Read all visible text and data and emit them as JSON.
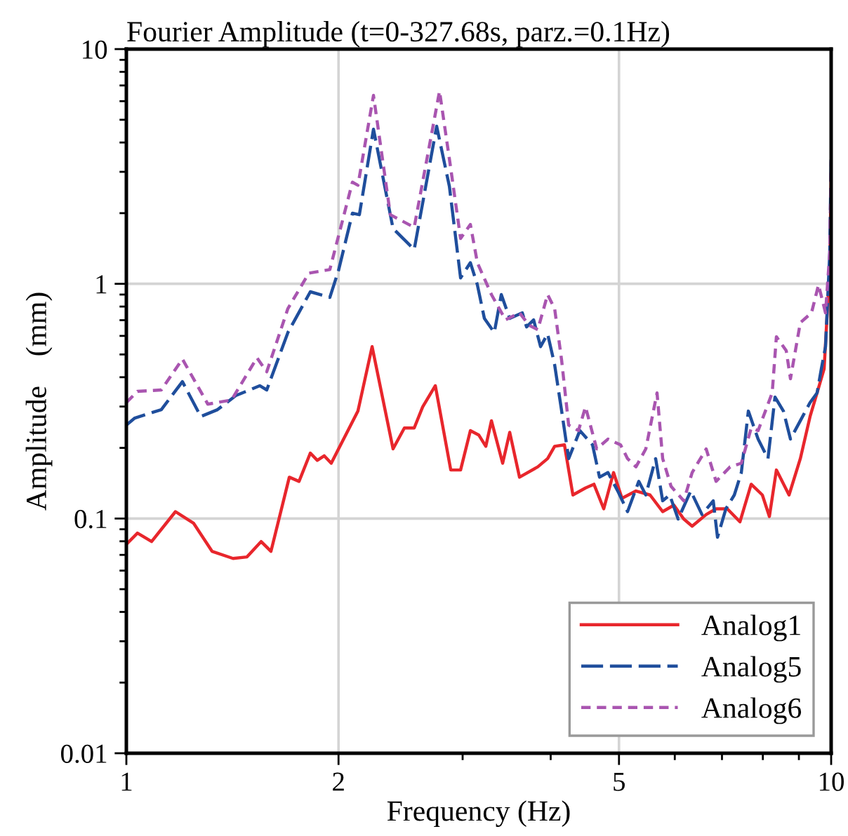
{
  "chart_data": {
    "type": "line",
    "title": "Fourier Amplitude (t=0-327.68s, parz.=0.1Hz)",
    "xlabel": "Frequency (Hz)",
    "ylabel": "Amplitude    (mm)",
    "log": "xy",
    "xlim": [
      1,
      10
    ],
    "xticks": [
      1,
      2,
      5,
      10
    ],
    "ylim": [
      0.01,
      10
    ],
    "yticks": [
      0.01,
      0.1,
      1,
      10
    ],
    "grid": true,
    "legend": "bottom right",
    "series": [
      {
        "name": "Analog1",
        "color": "#e8262c",
        "line_style": "solid",
        "x": [
          1.0,
          1.037,
          1.086,
          1.174,
          1.246,
          1.323,
          1.417,
          1.483,
          1.553,
          1.604,
          1.703,
          1.758,
          1.824,
          1.866,
          1.909,
          1.953,
          2.131,
          2.232,
          2.39,
          2.48,
          2.561,
          2.633,
          2.744,
          2.886,
          2.98,
          3.077,
          3.162,
          3.236,
          3.296,
          3.419,
          3.499,
          3.613,
          3.835,
          3.96,
          4.052,
          4.184,
          4.301,
          4.482,
          4.607,
          4.757,
          4.912,
          5.049,
          5.285,
          5.534,
          5.767,
          5.983,
          6.178,
          6.35,
          6.648,
          6.866,
          7.123,
          7.423,
          7.701,
          7.987,
          8.173,
          8.362,
          8.715,
          9.042,
          9.334,
          9.551,
          9.773,
          9.955,
          10
        ],
        "values": [
          0.0776,
          0.0867,
          0.0798,
          0.107,
          0.0954,
          0.0725,
          0.0676,
          0.0686,
          0.0798,
          0.0725,
          0.15,
          0.144,
          0.19,
          0.177,
          0.185,
          0.172,
          0.287,
          0.54,
          0.198,
          0.243,
          0.243,
          0.299,
          0.368,
          0.161,
          0.161,
          0.237,
          0.227,
          0.203,
          0.261,
          0.172,
          0.233,
          0.15,
          0.166,
          0.18,
          0.203,
          0.206,
          0.126,
          0.135,
          0.14,
          0.11,
          0.157,
          0.122,
          0.131,
          0.126,
          0.107,
          0.114,
          0.0995,
          0.0928,
          0.104,
          0.11,
          0.11,
          0.0968,
          0.14,
          0.126,
          0.102,
          0.161,
          0.126,
          0.18,
          0.272,
          0.343,
          0.434,
          1.18,
          2.9
        ]
      },
      {
        "name": "Analog5",
        "color": "#1f4e9c",
        "line_style": "dashed",
        "x": [
          1.0,
          1.028,
          1.121,
          1.201,
          1.275,
          1.347,
          1.43,
          1.546,
          1.582,
          1.695,
          1.824,
          1.944,
          2.0,
          2.093,
          2.141,
          2.242,
          2.39,
          2.561,
          2.756,
          2.873,
          2.98,
          3.077,
          3.148,
          3.221,
          3.327,
          3.404,
          3.499,
          3.646,
          3.697,
          3.783,
          3.87,
          3.96,
          4.052,
          4.146,
          4.242,
          4.4,
          4.586,
          4.692,
          4.823,
          4.98,
          5.142,
          5.334,
          5.458,
          5.636,
          5.767,
          5.901,
          6.066,
          6.321,
          6.557,
          6.803,
          6.898,
          7.09,
          7.288,
          7.457,
          7.63,
          7.877,
          8.135,
          8.324,
          8.556,
          8.755,
          9.042,
          9.334,
          9.551,
          9.684,
          9.818,
          9.955,
          10
        ],
        "values": [
          0.25,
          0.268,
          0.291,
          0.383,
          0.272,
          0.291,
          0.334,
          0.368,
          0.353,
          0.62,
          0.925,
          0.875,
          1.14,
          2.0,
          1.97,
          4.56,
          1.72,
          1.4,
          4.69,
          2.6,
          1.06,
          1.23,
          0.99,
          0.712,
          0.62,
          0.9,
          0.712,
          0.752,
          0.655,
          0.702,
          0.54,
          0.612,
          0.452,
          0.287,
          0.18,
          0.237,
          0.206,
          0.15,
          0.157,
          0.131,
          0.107,
          0.144,
          0.126,
          0.18,
          0.119,
          0.126,
          0.0995,
          0.131,
          0.104,
          0.119,
          0.0832,
          0.11,
          0.126,
          0.157,
          0.287,
          0.218,
          0.18,
          0.329,
          0.287,
          0.218,
          0.261,
          0.312,
          0.343,
          0.434,
          0.54,
          1.36,
          3.56
        ]
      },
      {
        "name": "Analog6",
        "color": "#a955b0",
        "line_style": "dotted",
        "x": [
          1.0,
          1.037,
          1.121,
          1.201,
          1.305,
          1.41,
          1.532,
          1.582,
          1.695,
          1.815,
          1.944,
          2.093,
          2.131,
          2.242,
          2.369,
          2.561,
          2.782,
          2.886,
          2.98,
          3.077,
          3.148,
          3.296,
          3.451,
          3.613,
          3.731,
          3.835,
          3.96,
          4.052,
          4.146,
          4.242,
          4.38,
          4.482,
          4.649,
          4.823,
          5.026,
          5.142,
          5.285,
          5.458,
          5.662,
          5.767,
          5.928,
          6.178,
          6.35,
          6.648,
          6.866,
          7.189,
          7.457,
          7.701,
          7.877,
          8.248,
          8.362,
          8.635,
          8.755,
          9.042,
          9.378,
          9.596,
          9.818,
          9.955,
          10
        ],
        "values": [
          0.312,
          0.348,
          0.353,
          0.478,
          0.307,
          0.32,
          0.484,
          0.422,
          0.784,
          1.11,
          1.15,
          2.71,
          2.63,
          6.35,
          1.97,
          1.74,
          6.62,
          3.1,
          1.56,
          1.79,
          1.23,
          0.9,
          0.702,
          0.752,
          0.665,
          0.638,
          0.9,
          0.784,
          0.471,
          0.25,
          0.237,
          0.299,
          0.198,
          0.218,
          0.206,
          0.18,
          0.166,
          0.198,
          0.343,
          0.18,
          0.137,
          0.119,
          0.157,
          0.198,
          0.144,
          0.166,
          0.172,
          0.243,
          0.237,
          0.343,
          0.595,
          0.519,
          0.394,
          0.683,
          0.752,
          0.99,
          0.752,
          1.36,
          3.32
        ]
      }
    ]
  }
}
